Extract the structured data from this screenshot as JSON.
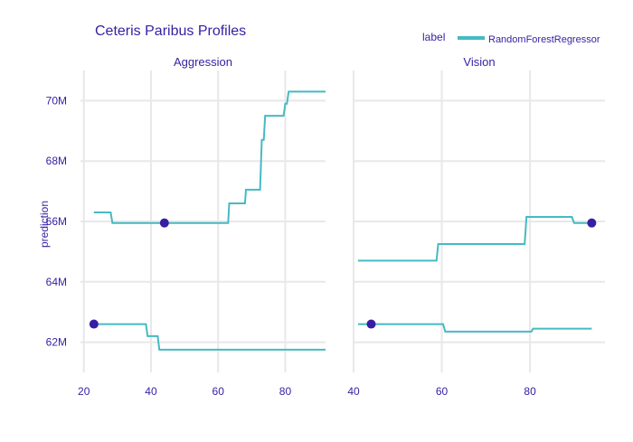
{
  "chart_data": {
    "type": "line",
    "title": "Ceteris Paribus Profiles",
    "ylabel": "prediction",
    "legend": {
      "title": "label",
      "position": "top-right",
      "entries": [
        "RandomForestRegressor"
      ]
    },
    "colors": {
      "line": "#46bac2",
      "point": "#371ea3",
      "text": "#371ea3",
      "grid": "#e8e8e8"
    },
    "ylim": [
      61.0,
      71.0
    ],
    "yticks": [
      62,
      64,
      66,
      68,
      70
    ],
    "ytick_labels": [
      "62M",
      "64M",
      "66M",
      "68M",
      "70M"
    ],
    "facets": [
      {
        "name": "Aggression",
        "xlim": [
          19,
          92
        ],
        "xticks": [
          20,
          40,
          60,
          80
        ],
        "series": [
          {
            "name": "RandomForestRegressor",
            "points": [
              [
                23,
                66.3
              ],
              [
                28,
                66.3
              ],
              [
                28.5,
                65.95
              ],
              [
                63,
                65.95
              ],
              [
                63.3,
                66.6
              ],
              [
                68,
                66.6
              ],
              [
                68.3,
                67.05
              ],
              [
                72.5,
                67.05
              ],
              [
                73,
                68.7
              ],
              [
                73.6,
                68.7
              ],
              [
                74,
                69.5
              ],
              [
                79.5,
                69.5
              ],
              [
                80,
                69.9
              ],
              [
                80.5,
                69.9
              ],
              [
                81,
                70.3
              ],
              [
                92,
                70.3
              ]
            ],
            "observation": [
              44,
              65.95
            ]
          },
          {
            "name": "RandomForestRegressor",
            "points": [
              [
                23,
                62.6
              ],
              [
                38.5,
                62.6
              ],
              [
                39,
                62.2
              ],
              [
                42,
                62.2
              ],
              [
                42.5,
                61.75
              ],
              [
                92,
                61.75
              ]
            ],
            "observation": [
              23,
              62.6
            ]
          }
        ]
      },
      {
        "name": "Vision",
        "xlim": [
          40,
          97
        ],
        "xticks": [
          40,
          60,
          80
        ],
        "series": [
          {
            "name": "RandomForestRegressor",
            "points": [
              [
                41,
                64.7
              ],
              [
                58.8,
                64.7
              ],
              [
                59.2,
                65.25
              ],
              [
                78.8,
                65.25
              ],
              [
                79.2,
                66.15
              ],
              [
                89.5,
                66.15
              ],
              [
                90,
                65.95
              ],
              [
                94,
                65.95
              ]
            ],
            "observation": [
              94,
              65.95
            ]
          },
          {
            "name": "RandomForestRegressor",
            "points": [
              [
                41,
                62.6
              ],
              [
                60.3,
                62.6
              ],
              [
                60.8,
                62.35
              ],
              [
                80.3,
                62.35
              ],
              [
                80.7,
                62.45
              ],
              [
                94,
                62.45
              ]
            ],
            "observation": [
              44,
              62.6
            ]
          }
        ]
      }
    ]
  }
}
